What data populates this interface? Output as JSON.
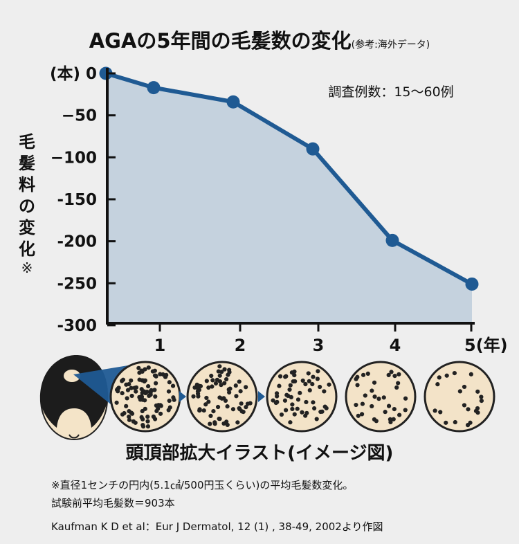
{
  "title": {
    "main": "AGAの5年間の毛髪数の変化",
    "sub": "(参考:海外データ)"
  },
  "y_axis_label": "毛髪料の変化",
  "y_axis_mark": "※",
  "sample_note": "調査例数：15〜60例",
  "colors": {
    "line": "#1f5a93",
    "area": "#c5d2de",
    "scalp": "#f3e3c8",
    "dots": "#222222",
    "arrow": "#1f5a93"
  },
  "chart_data": {
    "type": "area",
    "title": "AGAの5年間の毛髪数の変化",
    "ylabel": "毛髪料の変化",
    "xlabel": "",
    "x": [
      0,
      0.6,
      1.6,
      2.6,
      3.6,
      4.6
    ],
    "y": [
      0,
      -17,
      -34,
      -90,
      -199,
      -251
    ],
    "xlim": [
      0,
      4.6
    ],
    "ylim": [
      -300,
      0
    ],
    "xticks": [
      1,
      2,
      3,
      4,
      5
    ],
    "xtick_labels": [
      "1",
      "2",
      "3",
      "4",
      "5(年)"
    ],
    "yticks": [
      0,
      -50,
      -100,
      -150,
      -200,
      -250,
      -300
    ],
    "ytick_labels": [
      "(本) 0",
      "−50",
      "−100",
      "-150",
      "-200",
      "-250",
      "-300"
    ],
    "grid": false,
    "legend": "none",
    "annotations": [
      "調査例数：15〜60例"
    ]
  },
  "illustration": {
    "caption": "頭頂部拡大イラスト(イメージ図)",
    "hair_levels": [
      1.0,
      0.75,
      0.55,
      0.35,
      0.22
    ],
    "icons": [
      "head-crown-icon",
      "arrow-right-icon"
    ]
  },
  "footnotes": [
    "※直径1センチの円内(5.1㎠/500円玉くらい)の平均毛髪数変化。",
    "試験前平均毛髪数＝903本",
    "Kaufman K D et al：Eur J Dermatol, 12 (1) , 38-49, 2002より作図"
  ]
}
